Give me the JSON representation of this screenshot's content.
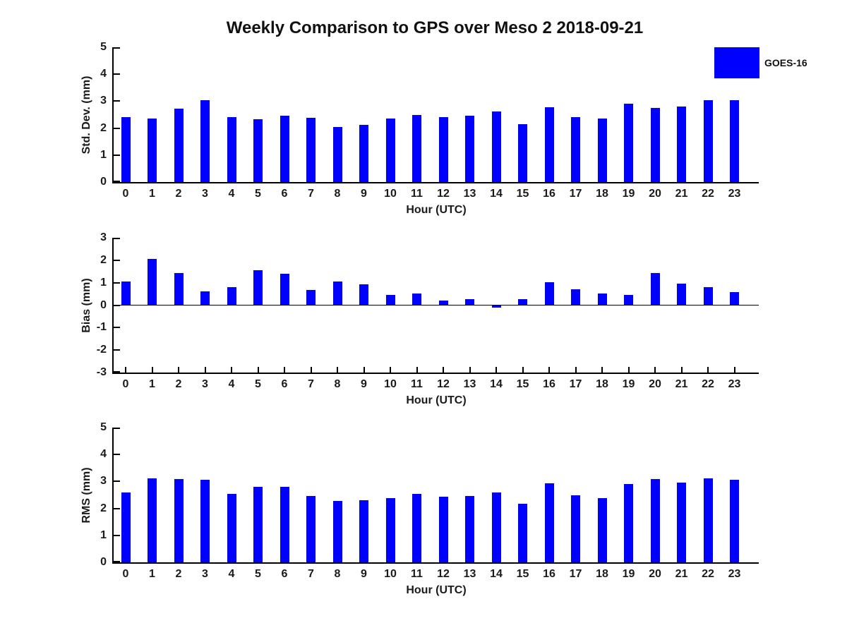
{
  "figure": {
    "title": "Weekly Comparison to GPS over Meso 2 2018-09-21",
    "legend": {
      "label": "GOES-16",
      "color": "#0000ff"
    }
  },
  "chart_data": [
    {
      "id": "std-dev",
      "type": "bar",
      "title": "Weekly Comparison to GPS over Meso 2 2018-09-21",
      "ylabel": "Std. Dev. (mm)",
      "xlabel": "Hour (UTC)",
      "ylim": [
        0,
        5
      ],
      "yticks": [
        0,
        1,
        2,
        3,
        4,
        5
      ],
      "grid": false,
      "legend_entry": "GOES-16",
      "legend_position": "top-right",
      "bar_color": "#0000ff",
      "categories": [
        "0",
        "1",
        "2",
        "3",
        "4",
        "5",
        "6",
        "7",
        "8",
        "9",
        "10",
        "11",
        "12",
        "13",
        "14",
        "15",
        "16",
        "17",
        "18",
        "19",
        "20",
        "21",
        "22",
        "23"
      ],
      "values": [
        2.4,
        2.35,
        2.73,
        3.03,
        2.42,
        2.32,
        2.45,
        2.37,
        2.03,
        2.11,
        2.36,
        2.5,
        2.42,
        2.45,
        2.61,
        2.14,
        2.77,
        2.4,
        2.35,
        2.91,
        2.75,
        2.81,
        3.04,
        3.04
      ]
    },
    {
      "id": "bias",
      "type": "bar",
      "title": "",
      "ylabel": "Bias (mm)",
      "xlabel": "Hour (UTC)",
      "ylim": [
        -3,
        3
      ],
      "yticks": [
        -3,
        -2,
        -1,
        0,
        1,
        2,
        3
      ],
      "grid": false,
      "bar_color": "#0000ff",
      "categories": [
        "0",
        "1",
        "2",
        "3",
        "4",
        "5",
        "6",
        "7",
        "8",
        "9",
        "10",
        "11",
        "12",
        "13",
        "14",
        "15",
        "16",
        "17",
        "18",
        "19",
        "20",
        "21",
        "22",
        "23"
      ],
      "values": [
        1.04,
        2.07,
        1.42,
        0.6,
        0.79,
        1.57,
        1.39,
        0.67,
        1.04,
        0.94,
        0.45,
        0.51,
        0.2,
        0.28,
        -0.1,
        0.27,
        1.01,
        0.71,
        0.52,
        0.46,
        1.44,
        0.97,
        0.79,
        0.57
      ]
    },
    {
      "id": "rms",
      "type": "bar",
      "title": "",
      "ylabel": "RMS (mm)",
      "xlabel": "Hour (UTC)",
      "ylim": [
        0,
        5
      ],
      "yticks": [
        0,
        1,
        2,
        3,
        4,
        5
      ],
      "grid": false,
      "bar_color": "#0000ff",
      "categories": [
        "0",
        "1",
        "2",
        "3",
        "4",
        "5",
        "6",
        "7",
        "8",
        "9",
        "10",
        "11",
        "12",
        "13",
        "14",
        "15",
        "16",
        "17",
        "18",
        "19",
        "20",
        "21",
        "22",
        "23"
      ],
      "values": [
        2.6,
        3.11,
        3.08,
        3.05,
        2.53,
        2.79,
        2.79,
        2.47,
        2.29,
        2.31,
        2.39,
        2.54,
        2.44,
        2.46,
        2.6,
        2.16,
        2.92,
        2.49,
        2.39,
        2.9,
        3.1,
        2.95,
        3.12,
        3.06
      ]
    }
  ]
}
